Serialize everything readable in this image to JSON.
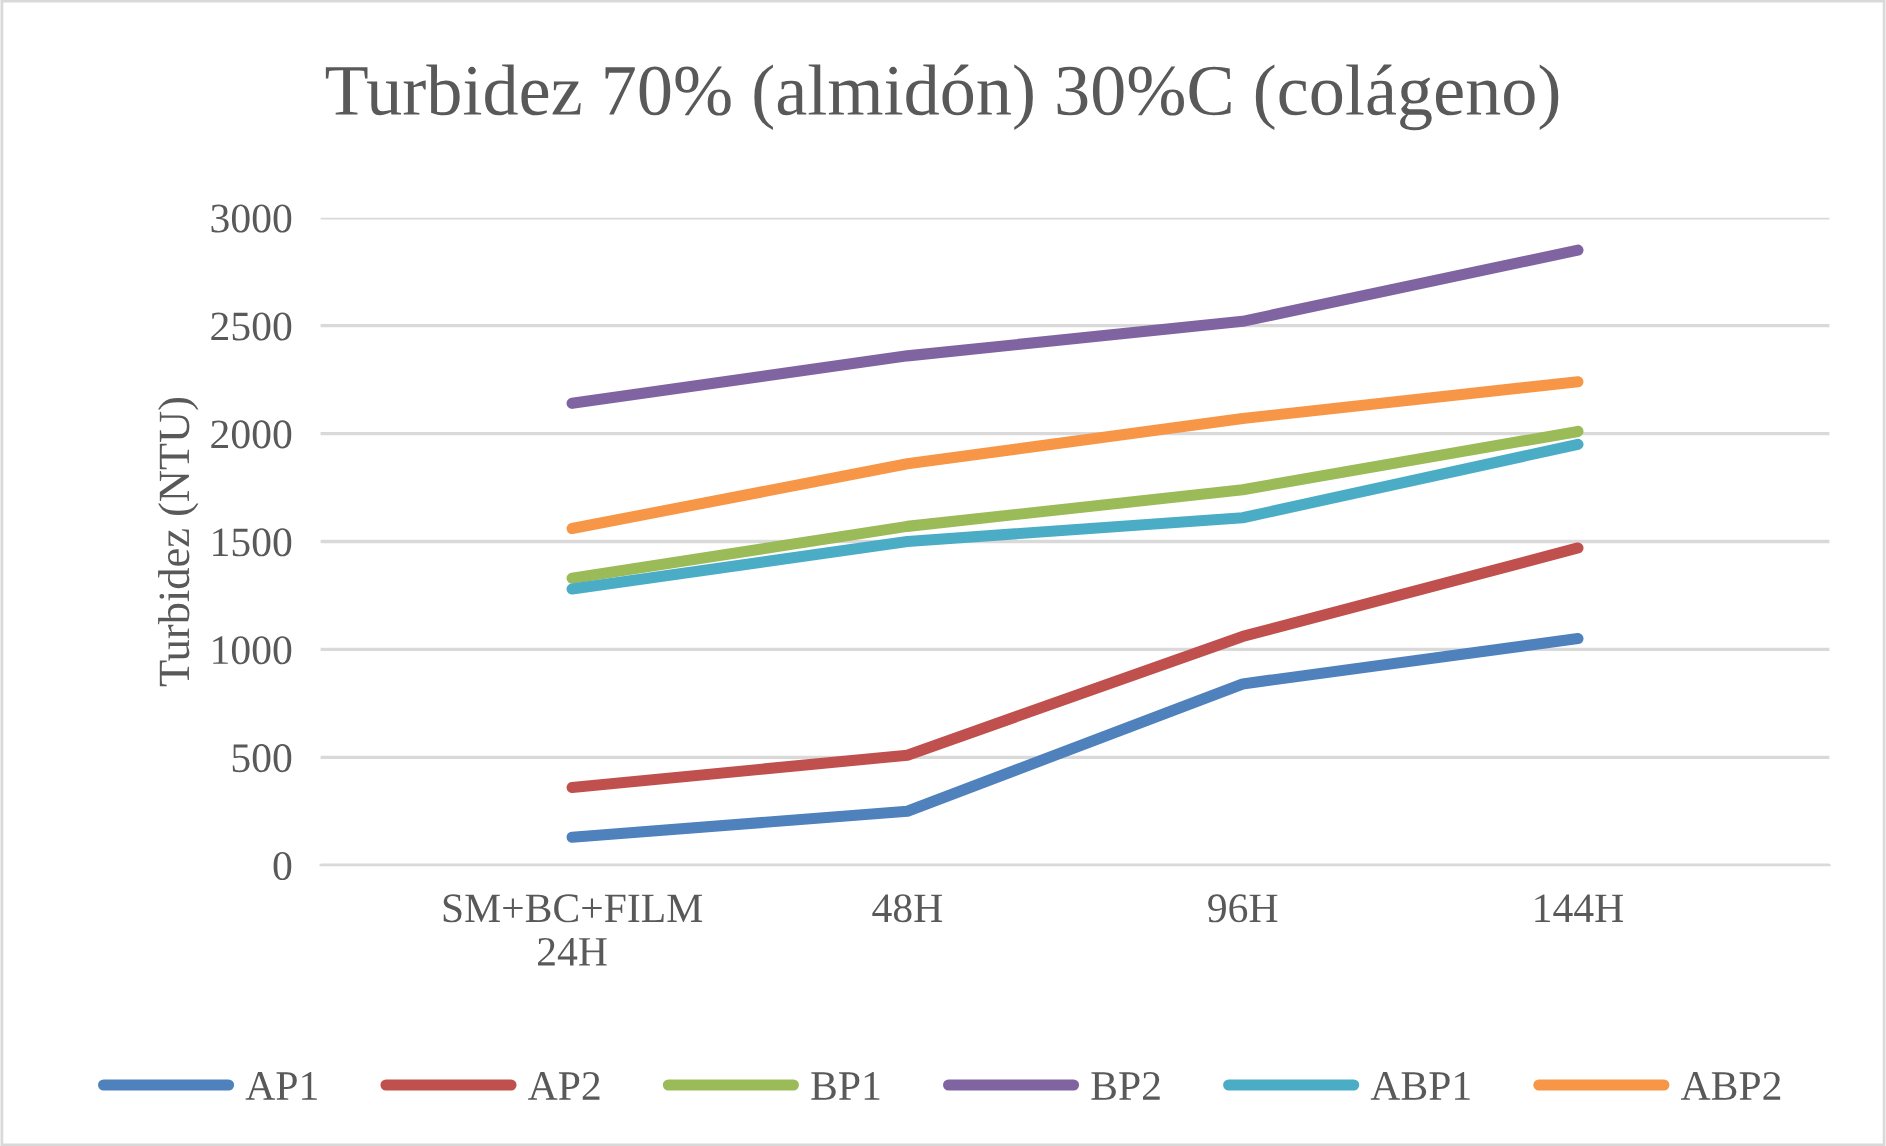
{
  "chart_data": {
    "type": "line",
    "title": "Turbidez 70% (almidón) 30%C (colágeno)",
    "ylabel": "Turbidez (NTU)",
    "categories": [
      "SM+BC+FILM\n24H",
      "48H",
      "96H",
      "144H"
    ],
    "series": [
      {
        "name": "AP1",
        "color": "#4f81bd",
        "values": [
          130,
          250,
          840,
          1050
        ]
      },
      {
        "name": "AP2",
        "color": "#c0504d",
        "values": [
          360,
          510,
          1060,
          1470
        ]
      },
      {
        "name": "BP1",
        "color": "#9bbb59",
        "values": [
          1330,
          1570,
          1740,
          2010
        ]
      },
      {
        "name": "BP2",
        "color": "#8064a2",
        "values": [
          2140,
          2360,
          2520,
          2850
        ]
      },
      {
        "name": "ABP1",
        "color": "#4bacc6",
        "values": [
          1280,
          1500,
          1610,
          1950
        ]
      },
      {
        "name": "ABP2",
        "color": "#f79646",
        "values": [
          1560,
          1860,
          2070,
          2240
        ]
      }
    ],
    "ylim": [
      0,
      3000
    ],
    "yticks": [
      0,
      500,
      1000,
      1500,
      2000,
      2500,
      3000
    ],
    "grid": "y",
    "legend": "bottom",
    "marker": "none",
    "line_style": "solid"
  }
}
